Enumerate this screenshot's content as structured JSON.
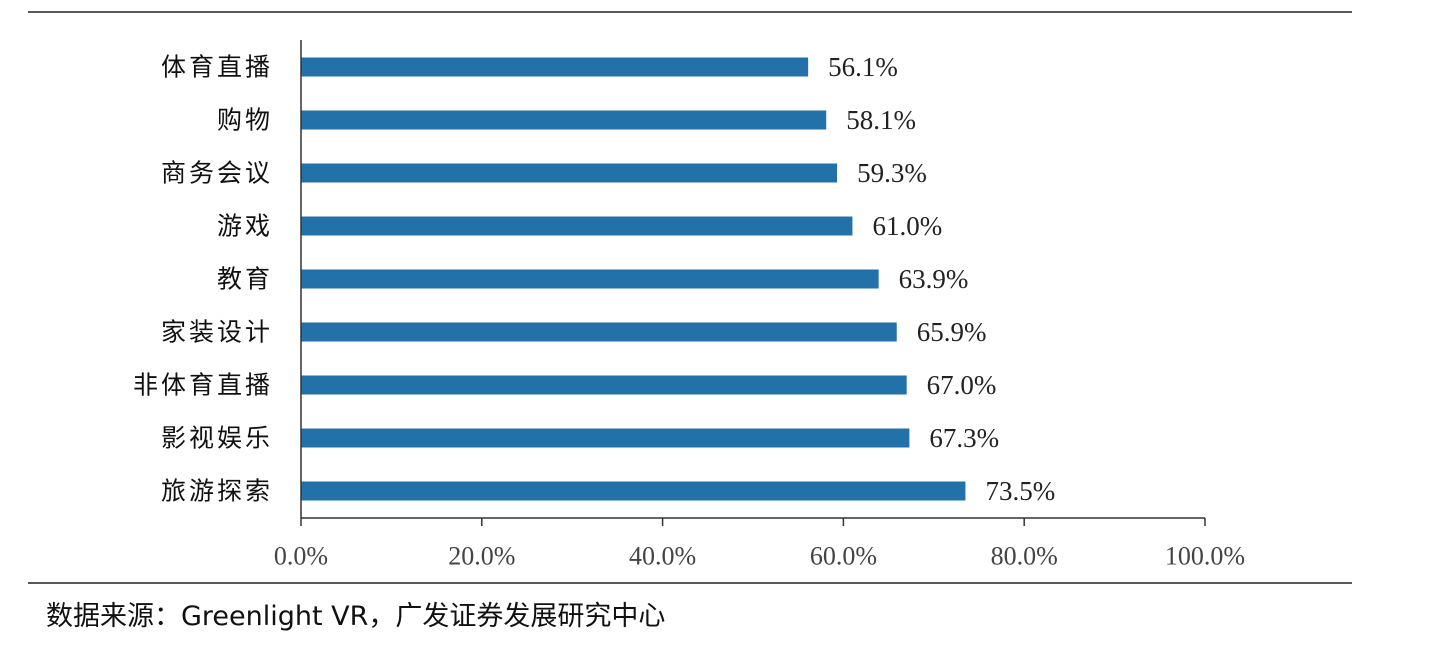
{
  "chart_data": {
    "type": "bar",
    "orientation": "horizontal",
    "categories": [
      "体育直播",
      "购物",
      "商务会议",
      "游戏",
      "教育",
      "家装设计",
      "非体育直播",
      "影视娱乐",
      "旅游探索"
    ],
    "values": [
      56.1,
      58.1,
      59.3,
      61.0,
      63.9,
      65.9,
      67.0,
      67.3,
      73.5
    ],
    "value_labels": [
      "56.1%",
      "58.1%",
      "59.3%",
      "61.0%",
      "63.9%",
      "65.9%",
      "67.0%",
      "67.3%",
      "73.5%"
    ],
    "xlim": [
      0,
      100
    ],
    "x_ticks": [
      0,
      20,
      40,
      60,
      80,
      100
    ],
    "x_tick_labels": [
      "0.0%",
      "20.0%",
      "40.0%",
      "60.0%",
      "80.0%",
      "100.0%"
    ],
    "bar_color": "#2271a8",
    "grid": false,
    "legend": "none"
  },
  "footer": {
    "source": "数据来源：Greenlight VR，广发证券发展研究中心"
  }
}
